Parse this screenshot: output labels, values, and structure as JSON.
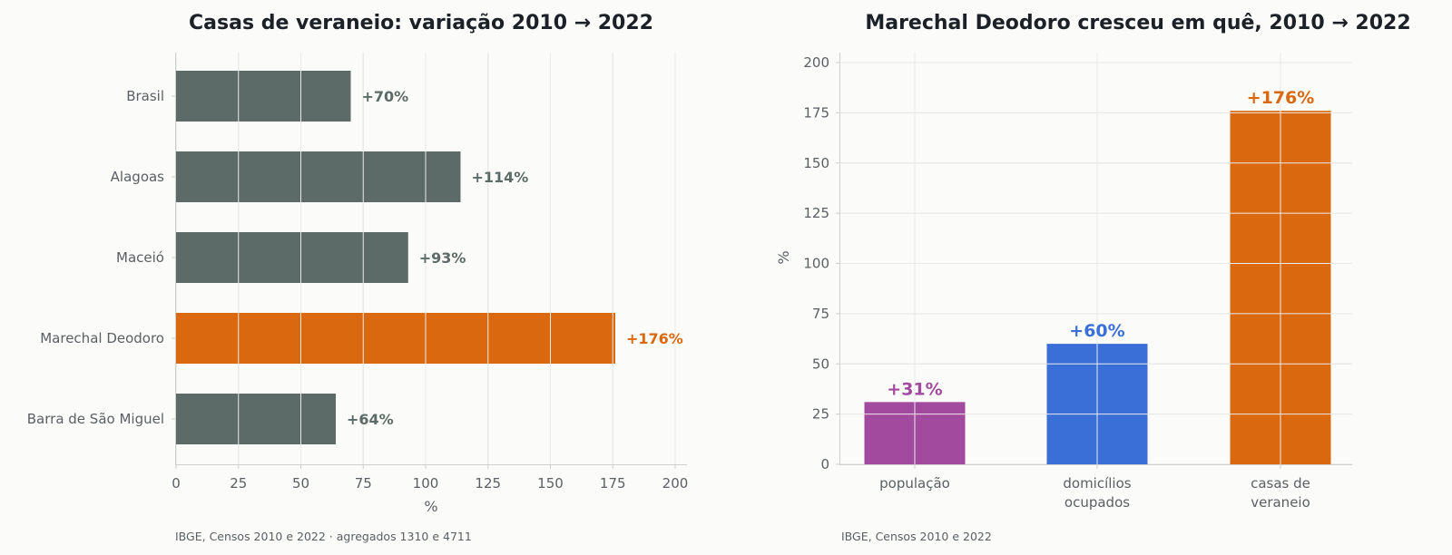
{
  "colors": {
    "neutral": "#5c6b67",
    "highlight": "#d9680f",
    "population": "#a24a9e",
    "households": "#3b6fd8"
  },
  "chart_data": [
    {
      "type": "bar",
      "orientation": "horizontal",
      "title": "Casas de veraneio: variação 2010 → 2022",
      "xlabel": "%",
      "ylabel": "",
      "xlim": [
        0,
        200
      ],
      "xticks": [
        "0",
        "25",
        "50",
        "75",
        "100",
        "125",
        "150",
        "175",
        "200"
      ],
      "categories": [
        "Brasil",
        "Alagoas",
        "Maceió",
        "Marechal Deodoro",
        "Barra de São Miguel"
      ],
      "values": [
        70,
        114,
        93,
        176,
        64
      ],
      "value_labels": [
        "+70%",
        "+114%",
        "+93%",
        "+176%",
        "+64%"
      ],
      "highlight": "Marechal Deodoro",
      "grid": true,
      "source": "IBGE, Censos 2010 e 2022 · agregados 1310 e 4711"
    },
    {
      "type": "bar",
      "orientation": "vertical",
      "title": "Marechal Deodoro cresceu em quê, 2010 → 2022",
      "xlabel": "",
      "ylabel": "%",
      "ylim": [
        0,
        200
      ],
      "yticks": [
        "0",
        "25",
        "50",
        "75",
        "100",
        "125",
        "150",
        "175",
        "200"
      ],
      "categories": [
        [
          "população"
        ],
        [
          "domicílios",
          "ocupados"
        ],
        [
          "casas de",
          "veraneio"
        ]
      ],
      "values": [
        31,
        60,
        176
      ],
      "value_labels": [
        "+31%",
        "+60%",
        "+176%"
      ],
      "grid": true,
      "source": "IBGE, Censos 2010 e 2022"
    }
  ]
}
